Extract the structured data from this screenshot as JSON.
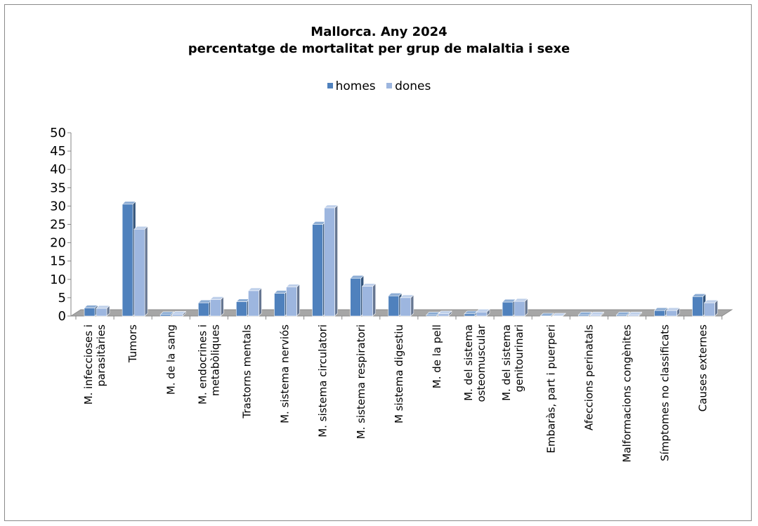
{
  "chart_data": {
    "type": "bar",
    "title": "Mallorca. Any 2024",
    "subtitle": "percentatge de mortalitat per grup de malaltia i sexe",
    "legend_position": "top",
    "ylim": [
      0,
      50
    ],
    "yticks": [
      0,
      5,
      10,
      15,
      20,
      25,
      30,
      35,
      40,
      45,
      50
    ],
    "grid": false,
    "style": "3d-clustered-column",
    "categories": [
      "M. infeccioses i parasitàries",
      "Tumors",
      "M. de la sang",
      "M. endocrines i metabòliques",
      "Trastorns  mentals",
      "M. sistema nerviós",
      "M. sistema circulatori",
      "M. sistema respiratori",
      "M sistema digestiu",
      "M. de la pell",
      "M. del sistema osteomuscular",
      "M. del sistema genitourinari",
      "Embaràs, part i puerperi",
      "Afeccions perinatals",
      "Malformacions congènites",
      "Símptomes no classificats",
      "Causes externes"
    ],
    "category_lines": [
      [
        "M. infeccioses i",
        "parasitàries"
      ],
      [
        "Tumors"
      ],
      [
        "M. de la sang"
      ],
      [
        "M. endocrines i",
        "metabòliques"
      ],
      [
        "Trastorns  mentals"
      ],
      [
        "M. sistema nerviós"
      ],
      [
        "M. sistema circulatori"
      ],
      [
        "M. sistema respiratori"
      ],
      [
        "M sistema digestiu"
      ],
      [
        "M. de la pell"
      ],
      [
        "M. del sistema",
        "osteomuscular"
      ],
      [
        "M. del sistema",
        "genitourinari"
      ],
      [
        "Embaràs, part i puerperi"
      ],
      [
        "Afeccions perinatals"
      ],
      [
        "Malformacions congènites"
      ],
      [
        "Símptomes no classificats"
      ],
      [
        "Causes externes"
      ]
    ],
    "series": [
      {
        "name": "homes",
        "color": "#4f81bd",
        "values": [
          2.2,
          30.5,
          0.4,
          3.6,
          3.9,
          6.2,
          25.0,
          10.3,
          5.5,
          0.3,
          0.6,
          3.8,
          0.0,
          0.3,
          0.3,
          1.5,
          5.3
        ]
      },
      {
        "name": "dones",
        "color": "#9db6df",
        "values": [
          2.1,
          23.7,
          0.5,
          4.5,
          6.9,
          7.9,
          29.5,
          8.1,
          5.0,
          0.6,
          1.1,
          4.0,
          0.0,
          0.3,
          0.3,
          1.5,
          3.6
        ]
      }
    ]
  }
}
